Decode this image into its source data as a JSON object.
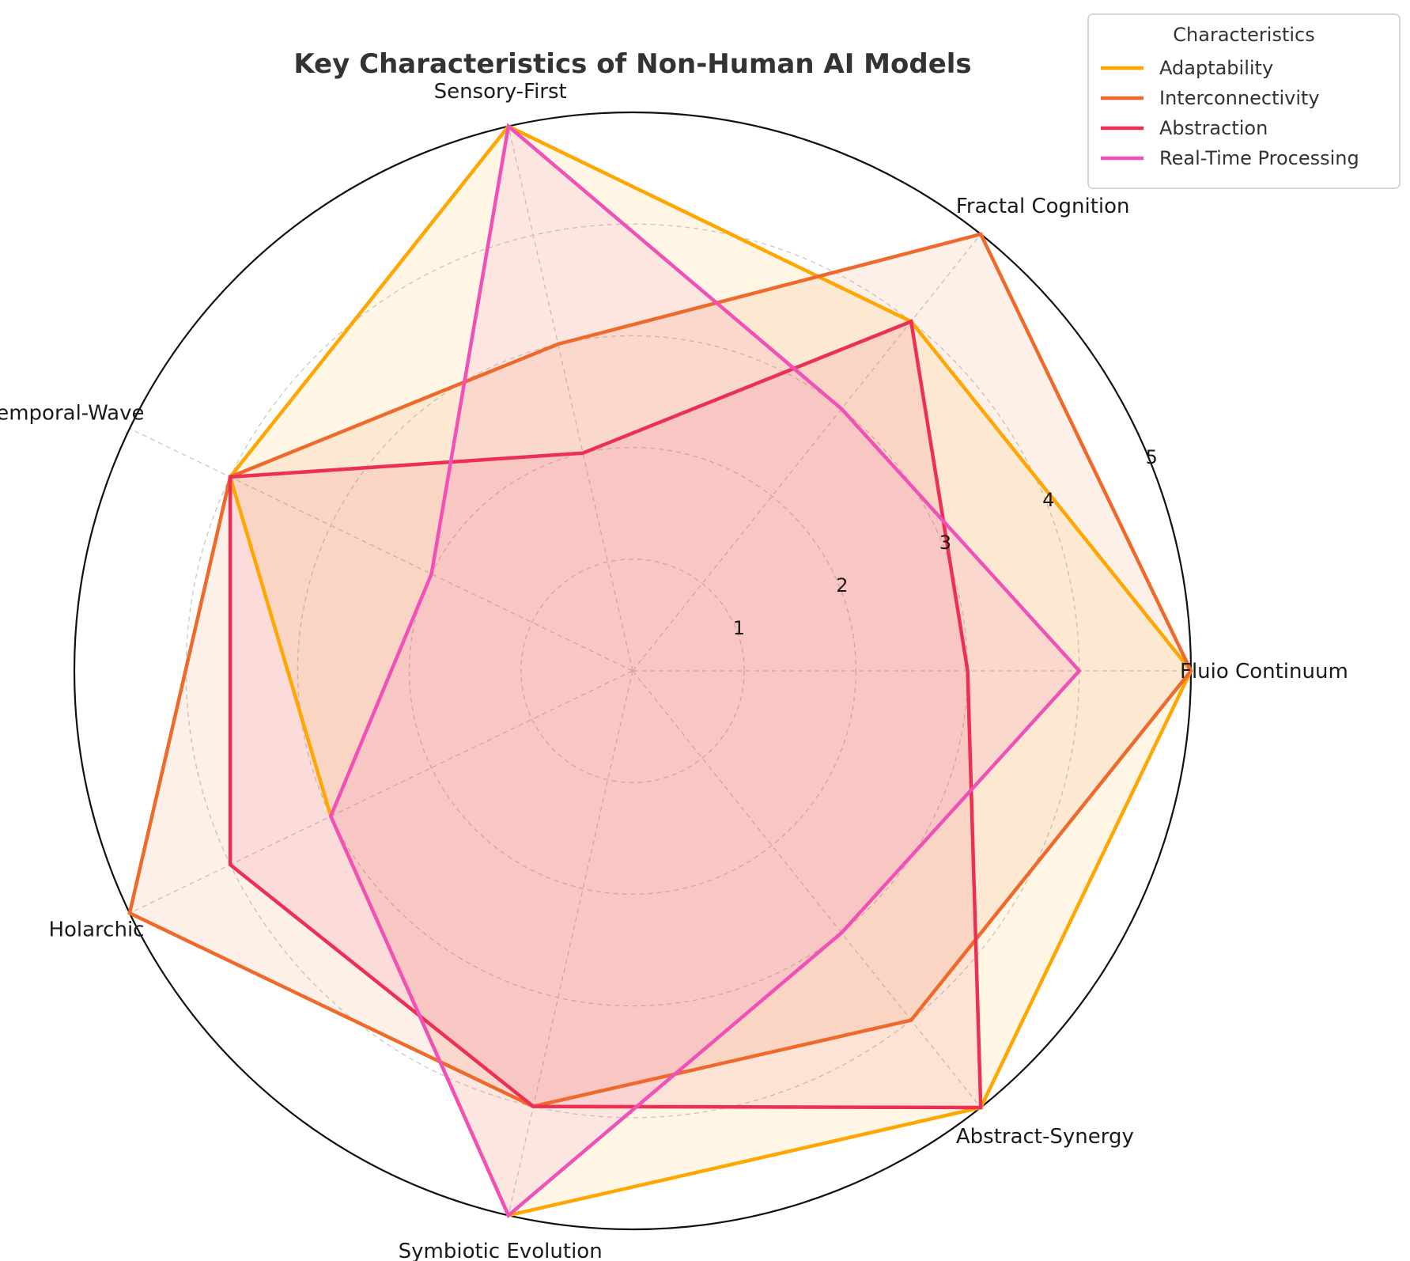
{
  "chart_data": {
    "type": "radar",
    "title": "Key Characteristics of Non-Human AI Models",
    "categories": [
      "Fluio Continuum",
      "Fractal Cognition",
      "Sensory-First",
      "Temporal-Wave",
      "Holarchic",
      "Symbiotic Evolution",
      "Abstract-Synergy"
    ],
    "series": [
      {
        "name": "Adaptability",
        "color": "#ffa600",
        "values": [
          5,
          4,
          5,
          4,
          3,
          5,
          5
        ]
      },
      {
        "name": "Interconnectivity",
        "color": "#ef6a2a",
        "values": [
          5,
          5,
          3,
          4,
          5,
          4,
          4
        ]
      },
      {
        "name": "Abstraction",
        "color": "#ee2f55",
        "values": [
          3,
          4,
          2,
          4,
          4,
          4,
          5
        ]
      },
      {
        "name": "Real-Time Processing",
        "color": "#f050b8",
        "values": [
          4,
          3,
          5,
          2,
          3,
          5,
          3
        ]
      }
    ],
    "rlim": [
      0,
      5
    ],
    "rticks": [
      "1",
      "2",
      "3",
      "4",
      "5"
    ],
    "grid": true,
    "legend": {
      "title": "Characteristics",
      "placement": "top-right"
    }
  }
}
